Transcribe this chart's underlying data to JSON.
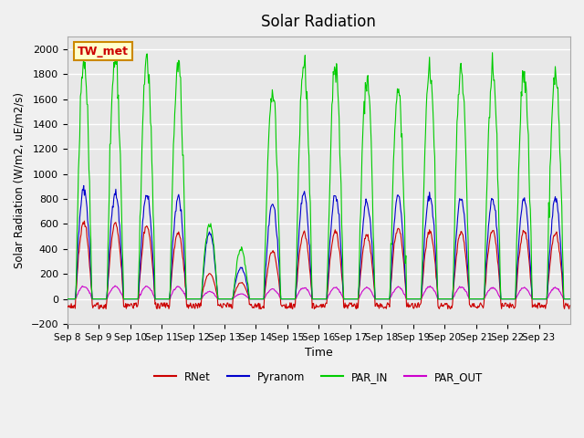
{
  "title": "Solar Radiation",
  "ylabel": "Solar Radiation (W/m2, uE/m2/s)",
  "xlabel": "Time",
  "ylim": [
    -200,
    2100
  ],
  "yticks": [
    -200,
    0,
    200,
    400,
    600,
    800,
    1000,
    1200,
    1400,
    1600,
    1800,
    2000
  ],
  "station_label": "TW_met",
  "x_tick_labels": [
    "Sep 8",
    "Sep 9",
    "Sep 10",
    "Sep 11",
    "Sep 12",
    "Sep 13",
    "Sep 14",
    "Sep 15",
    "Sep 16",
    "Sep 17",
    "Sep 18",
    "Sep 19",
    "Sep 20",
    "Sep 21",
    "Sep 22",
    "Sep 23"
  ],
  "num_days": 16,
  "colors": {
    "RNet": "#cc0000",
    "Pyranom": "#0000cc",
    "PAR_IN": "#00cc00",
    "PAR_OUT": "#cc00cc"
  },
  "background_color": "#e8e8e8",
  "plot_bg_color": "#e8e8e8",
  "grid_color": "#ffffff",
  "legend_entries": [
    "RNet",
    "Pyranom",
    "PAR_IN",
    "PAR_OUT"
  ],
  "par_in_peaks": [
    1920,
    1920,
    1930,
    1870,
    600,
    400,
    1680,
    1900,
    1880,
    1760,
    1670,
    1850,
    1840,
    1810,
    1810,
    1820
  ],
  "pyranom_peaks": [
    880,
    855,
    840,
    810,
    530,
    250,
    760,
    840,
    830,
    780,
    820,
    830,
    810,
    800,
    800,
    795
  ],
  "rnet_peaks": [
    610,
    600,
    590,
    530,
    200,
    130,
    380,
    530,
    540,
    510,
    570,
    545,
    535,
    545,
    545,
    530
  ],
  "par_out_peaks": [
    100,
    100,
    100,
    100,
    60,
    40,
    80,
    90,
    90,
    90,
    95,
    100,
    95,
    90,
    90,
    90
  ]
}
